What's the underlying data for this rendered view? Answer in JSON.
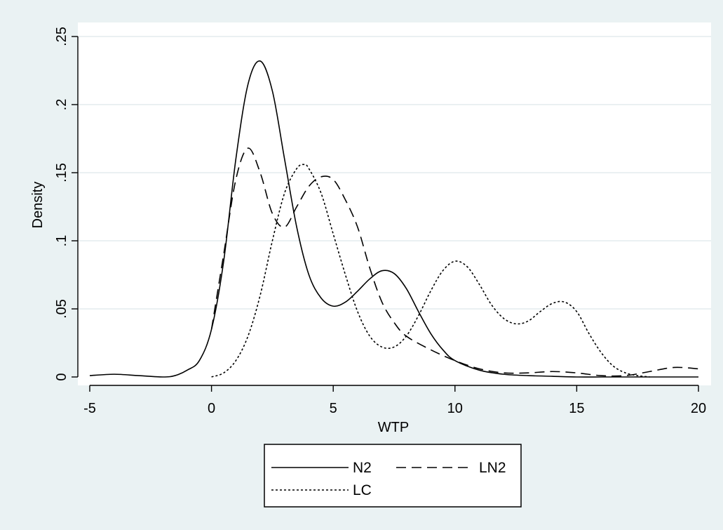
{
  "chart_data": {
    "type": "line",
    "xlabel": "WTP",
    "ylabel": "Density",
    "xlim": [
      -5,
      20
    ],
    "ylim": [
      0,
      0.25
    ],
    "xticks": [
      -5,
      0,
      5,
      10,
      15,
      20
    ],
    "xtick_labels": [
      "-5",
      "0",
      "5",
      "10",
      "15",
      "20"
    ],
    "yticks": [
      0,
      0.05,
      0.1,
      0.15,
      0.2,
      0.25
    ],
    "ytick_labels": [
      "0",
      ".05",
      ".1",
      ".15",
      ".2",
      ".25"
    ],
    "grid": true,
    "legend_position": "bottom-center",
    "series": [
      {
        "name": "N2",
        "style": "solid",
        "x": [
          -5,
          -4,
          -3,
          -2,
          -1.5,
          -1,
          -0.5,
          0,
          0.5,
          1,
          1.5,
          2,
          2.5,
          3,
          3.5,
          4,
          4.5,
          5,
          5.5,
          6,
          6.5,
          7,
          7.5,
          8,
          8.5,
          9,
          9.5,
          10,
          11,
          12,
          13,
          14,
          15,
          16,
          17,
          18,
          19,
          20
        ],
        "y": [
          0.001,
          0.002,
          0.001,
          0.0,
          0.001,
          0.005,
          0.012,
          0.035,
          0.085,
          0.16,
          0.215,
          0.232,
          0.21,
          0.16,
          0.11,
          0.075,
          0.058,
          0.052,
          0.055,
          0.063,
          0.072,
          0.078,
          0.076,
          0.065,
          0.048,
          0.032,
          0.02,
          0.012,
          0.005,
          0.002,
          0.001,
          0.0005,
          0.0,
          0.0,
          0.0,
          0.0,
          0.0,
          0.0
        ]
      },
      {
        "name": "LN2",
        "style": "dashed",
        "x": [
          0,
          0.5,
          1,
          1.5,
          2,
          2.5,
          3,
          3.5,
          4,
          4.5,
          5,
          5.5,
          6,
          6.5,
          7,
          7.5,
          8,
          9,
          10,
          11,
          12,
          13,
          14,
          15,
          16,
          17,
          18,
          19,
          20
        ],
        "y": [
          0.035,
          0.09,
          0.145,
          0.168,
          0.15,
          0.12,
          0.11,
          0.125,
          0.14,
          0.147,
          0.145,
          0.13,
          0.11,
          0.08,
          0.055,
          0.04,
          0.03,
          0.02,
          0.012,
          0.006,
          0.003,
          0.003,
          0.004,
          0.003,
          0.001,
          0.001,
          0.004,
          0.007,
          0.006
        ]
      },
      {
        "name": "LC",
        "style": "dotted",
        "x": [
          0,
          0.5,
          1,
          1.5,
          2,
          2.5,
          3,
          3.5,
          3.8,
          4,
          4.5,
          5,
          5.5,
          6,
          6.5,
          7,
          7.5,
          8,
          8.5,
          9,
          9.5,
          10,
          10.5,
          11,
          11.5,
          12,
          12.5,
          13,
          13.5,
          14,
          14.5,
          15,
          15.5,
          16,
          16.5,
          17,
          17.5,
          18
        ],
        "y": [
          0.0,
          0.003,
          0.012,
          0.03,
          0.06,
          0.1,
          0.135,
          0.153,
          0.156,
          0.153,
          0.135,
          0.105,
          0.075,
          0.048,
          0.03,
          0.022,
          0.022,
          0.03,
          0.045,
          0.063,
          0.078,
          0.085,
          0.081,
          0.068,
          0.053,
          0.043,
          0.039,
          0.041,
          0.048,
          0.054,
          0.055,
          0.048,
          0.032,
          0.018,
          0.008,
          0.003,
          0.001,
          0.0
        ]
      }
    ]
  }
}
